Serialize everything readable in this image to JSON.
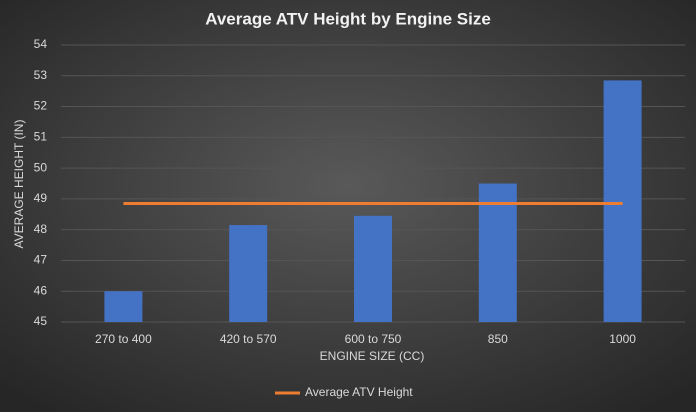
{
  "chart_data": {
    "type": "bar",
    "title": "Average ATV Height by Engine Size",
    "x_label": "ENGINE SIZE (CC)",
    "y_label": "AVERAGE HEIGHT (IN)",
    "categories": [
      "270 to 400",
      "420 to 570",
      "600 to 750",
      "850",
      "1000"
    ],
    "series": [
      {
        "type": "bar",
        "color": "#4472c4",
        "values": [
          46.0,
          48.15,
          48.45,
          49.5,
          52.85
        ]
      },
      {
        "type": "line",
        "name": "Average ATV Height",
        "color": "#ed7d31",
        "values": [
          48.85,
          48.85,
          48.85,
          48.85,
          48.85
        ]
      }
    ],
    "ylim": [
      45,
      54
    ],
    "yticks": [
      45,
      46,
      47,
      48,
      49,
      50,
      51,
      52,
      53,
      54
    ],
    "grid": true,
    "legend": "bottom"
  }
}
